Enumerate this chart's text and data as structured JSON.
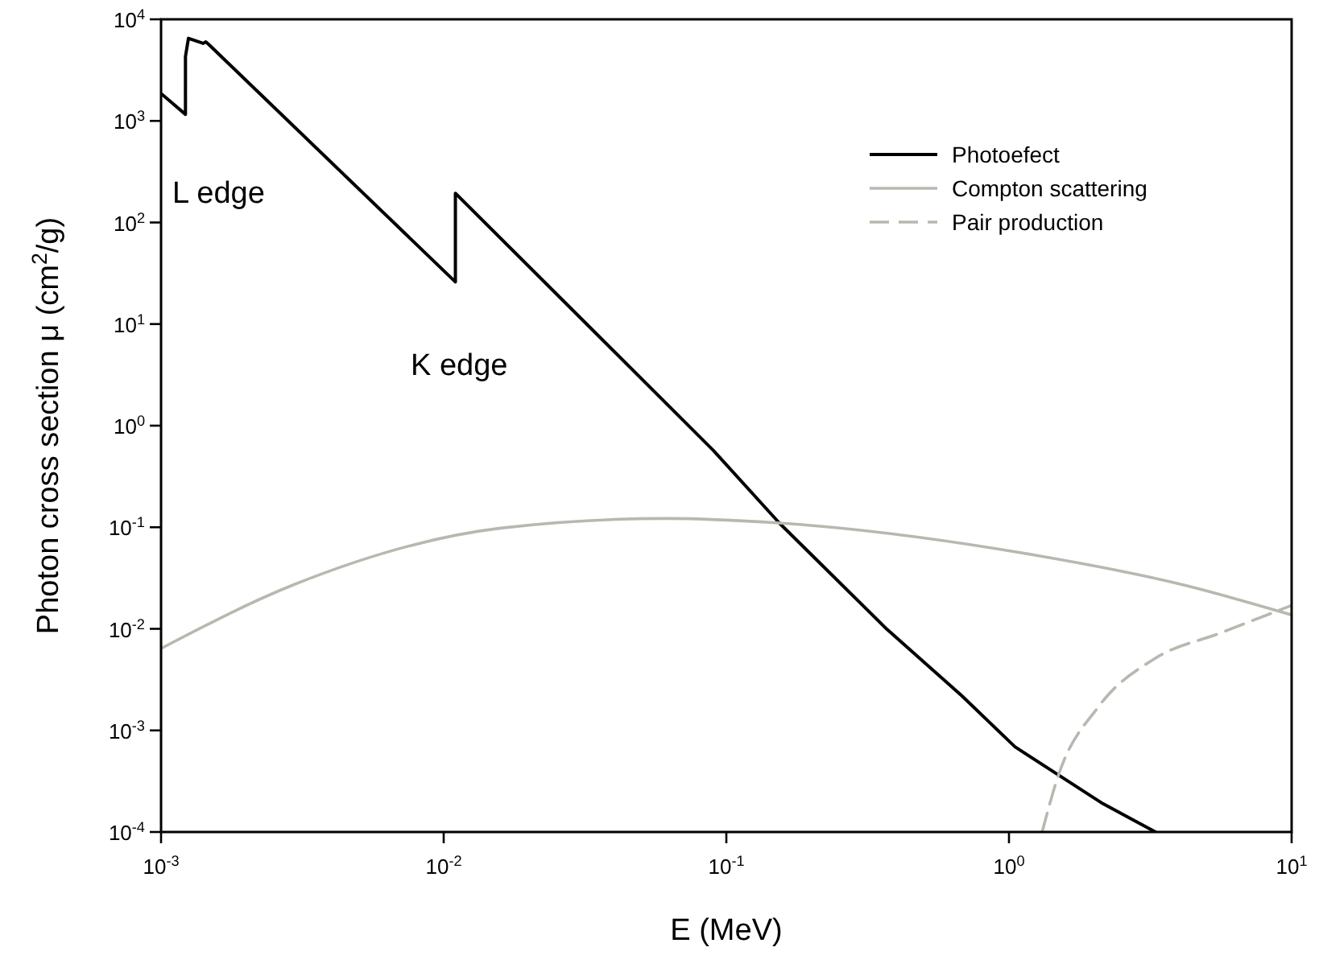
{
  "chart_data": {
    "type": "line",
    "xlabel": "E (MeV)",
    "ylabel": "Photon cross section μ (cm$^{2}$/g)",
    "log": "xy",
    "xlim": [
      0.001,
      10
    ],
    "ylim": [
      0.0001,
      10000
    ],
    "xticks": [
      {
        "value": 0.001,
        "label": "10$^{-3}$"
      },
      {
        "value": 0.01,
        "label": "10$^{-2}$"
      },
      {
        "value": 0.1,
        "label": "10$^{-1}$"
      },
      {
        "value": 1,
        "label": "10$^{0}$"
      },
      {
        "value": 10,
        "label": "10$^{1}$"
      }
    ],
    "yticks": [
      {
        "value": 0.0001,
        "label": "10$^{-4}$"
      },
      {
        "value": 0.001,
        "label": "10$^{-3}$"
      },
      {
        "value": 0.01,
        "label": "10$^{-2}$"
      },
      {
        "value": 0.1,
        "label": "10$^{-1}$"
      },
      {
        "value": 1,
        "label": "10$^{0}$"
      },
      {
        "value": 10,
        "label": "10$^{1}$"
      },
      {
        "value": 100,
        "label": "10$^{2}$"
      },
      {
        "value": 1000,
        "label": "10$^{3}$"
      },
      {
        "value": 10000,
        "label": "10$^{4}$"
      }
    ],
    "grid": false,
    "legend": "top right",
    "marker": "none",
    "series": [
      {
        "name": "Photoefect",
        "color": "#000000",
        "line_style": "solid",
        "x": [
          0.001,
          0.00122,
          0.00122,
          0.00125,
          0.00141,
          0.00144,
          0.00148,
          0.011,
          0.011,
          0.09,
          0.154,
          0.37,
          0.68,
          1.05,
          2.15,
          3.3
        ],
        "values": [
          1860,
          1160,
          4300,
          6500,
          5800,
          6000,
          5600,
          26,
          194,
          0.57,
          0.11,
          0.0099,
          0.0022,
          0.00069,
          0.00019,
          0.0001
        ]
      },
      {
        "name": "Compton scattering",
        "color": "#b8b8b0",
        "line_style": "solid",
        "x": [
          0.001,
          0.00293,
          0.0159,
          0.0607,
          0.154,
          1.24,
          4.15,
          10
        ],
        "values": [
          0.0064,
          0.027,
          0.098,
          0.122,
          0.11,
          0.053,
          0.027,
          0.0137
        ]
      },
      {
        "name": "Pair production",
        "color": "#b8b8b0",
        "line_style": "dashed",
        "x": [
          1.31,
          1.49,
          2.07,
          3.28,
          5.6,
          10
        ],
        "values": [
          0.0001,
          0.00035,
          0.0017,
          0.0051,
          0.0091,
          0.017
        ]
      }
    ],
    "annotations": [
      "L edge",
      "K edge"
    ]
  }
}
